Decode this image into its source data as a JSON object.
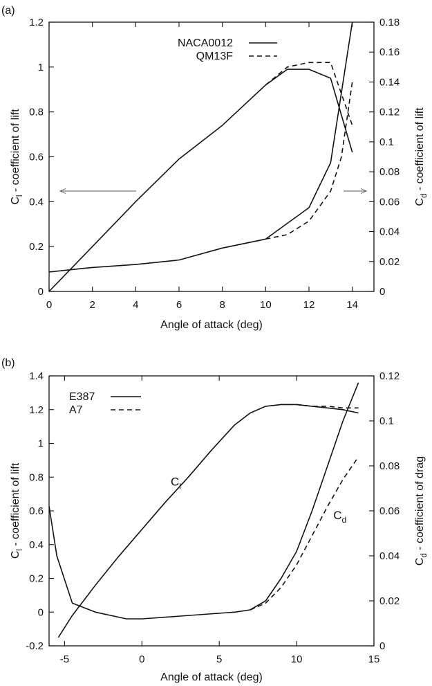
{
  "chart_data": [
    {
      "panel_label": "(a)",
      "type": "line",
      "xlabel": "Angle of attack (deg)",
      "ylabel_left": {
        "main": "C",
        "sub": "l",
        "rest": " - coefficient of lift"
      },
      "ylabel_right": {
        "main": "C",
        "sub": "d",
        "rest": " - coefficient of lift"
      },
      "xlim": [
        0,
        15
      ],
      "ylim_left": [
        0,
        1.2
      ],
      "ylim_right": [
        0,
        0.18
      ],
      "x_ticks": [
        "0",
        "2",
        "4",
        "6",
        "8",
        "10",
        "12",
        "14"
      ],
      "y_ticks_left": [
        "0",
        "0.2",
        "0.4",
        "0.6",
        "0.8",
        "1",
        "1.2"
      ],
      "y_ticks_right": [
        "0",
        "0.02",
        "0.04",
        "0.06",
        "0.08",
        "0.1",
        "0.12",
        "0.14",
        "0.16",
        "0.18"
      ],
      "grid": false,
      "legend_position": "top-center",
      "legend": [
        {
          "name": "NACA0012",
          "style": "solid"
        },
        {
          "name": "QM13F",
          "style": "dashed"
        }
      ],
      "series": [
        {
          "legend": "NACA0012",
          "quantity": "lift",
          "axis": "left",
          "style": "solid",
          "x": [
            0,
            2,
            4,
            6,
            8,
            10,
            11,
            12,
            13,
            14
          ],
          "y": [
            0,
            0.2,
            0.4,
            0.59,
            0.74,
            0.92,
            0.99,
            0.99,
            0.95,
            0.62
          ]
        },
        {
          "legend": "QM13F",
          "quantity": "lift",
          "axis": "left",
          "style": "dashed",
          "x": [
            10,
            11,
            12,
            13,
            14
          ],
          "y": [
            0.92,
            1.0,
            1.02,
            1.02,
            0.74
          ]
        },
        {
          "legend": "NACA0012",
          "quantity": "drag",
          "axis": "right",
          "style": "solid",
          "x": [
            0,
            2,
            4,
            6,
            8,
            10,
            12,
            13,
            14
          ],
          "y": [
            0.013,
            0.016,
            0.018,
            0.021,
            0.029,
            0.035,
            0.056,
            0.086,
            0.18
          ]
        },
        {
          "legend": "QM13F",
          "quantity": "drag",
          "axis": "right",
          "style": "dashed",
          "x": [
            10,
            11,
            12,
            13,
            13.5,
            14
          ],
          "y": [
            0.035,
            0.038,
            0.047,
            0.067,
            0.09,
            0.14
          ]
        }
      ]
    },
    {
      "panel_label": "(b)",
      "type": "line",
      "xlabel": "Angle of attack (deg)",
      "ylabel_left": {
        "main": "C",
        "sub": "l",
        "rest": " - coefficient of lift"
      },
      "ylabel_right": {
        "main": "C",
        "sub": "d",
        "rest": " - coefficient of drag"
      },
      "xlim": [
        -6,
        15
      ],
      "ylim_left": [
        -0.2,
        1.4
      ],
      "ylim_right": [
        0,
        0.12
      ],
      "x_ticks": [
        "-5",
        "0",
        "5",
        "10",
        "15"
      ],
      "y_ticks_left": [
        "-0.2",
        "0",
        "0.2",
        "0.4",
        "0.6",
        "0.8",
        "1",
        "1.2",
        "1.4"
      ],
      "y_ticks_right": [
        "0",
        "0.02",
        "0.04",
        "0.06",
        "0.08",
        "0.1",
        "0.12"
      ],
      "grid": false,
      "legend_position": "top-left",
      "legend": [
        {
          "name": "E387",
          "style": "solid"
        },
        {
          "name": "A7",
          "style": "dashed"
        }
      ],
      "annotations": [
        {
          "main": "C",
          "sub": "l",
          "x": 2.2,
          "y": 0.75
        },
        {
          "main": "C",
          "sub": "d",
          "x": 12.8,
          "y": 0.55
        }
      ],
      "series": [
        {
          "legend": "E387",
          "quantity": "lift",
          "axis": "left",
          "style": "solid",
          "x": [
            -5.4,
            -4.5,
            -3,
            -1.5,
            0,
            1.5,
            3,
            4.5,
            6,
            7,
            8,
            9,
            10,
            11,
            12,
            13,
            14
          ],
          "y": [
            -0.15,
            -0.02,
            0.16,
            0.33,
            0.49,
            0.65,
            0.8,
            0.96,
            1.11,
            1.18,
            1.22,
            1.23,
            1.23,
            1.22,
            1.21,
            1.2,
            1.18
          ]
        },
        {
          "legend": "A7",
          "quantity": "lift",
          "axis": "left",
          "style": "dashed",
          "x": [
            10,
            11,
            12,
            13,
            14
          ],
          "y": [
            1.23,
            1.22,
            1.22,
            1.21,
            1.21
          ]
        },
        {
          "legend": "E387",
          "quantity": "drag",
          "axis": "right",
          "style": "solid",
          "x": [
            -6,
            -5.5,
            -4.5,
            -3,
            -1,
            0,
            2,
            4,
            6,
            7,
            8,
            9,
            10,
            11,
            12,
            13,
            14
          ],
          "y": [
            0.062,
            0.04,
            0.019,
            0.015,
            0.012,
            0.012,
            0.013,
            0.014,
            0.015,
            0.016,
            0.02,
            0.03,
            0.042,
            0.06,
            0.08,
            0.1,
            0.117
          ]
        },
        {
          "legend": "A7",
          "quantity": "drag",
          "axis": "right",
          "style": "dashed",
          "x": [
            7,
            8,
            9,
            10,
            11,
            12,
            13,
            14
          ],
          "y": [
            0.016,
            0.019,
            0.026,
            0.036,
            0.049,
            0.062,
            0.074,
            0.084
          ]
        }
      ]
    }
  ]
}
